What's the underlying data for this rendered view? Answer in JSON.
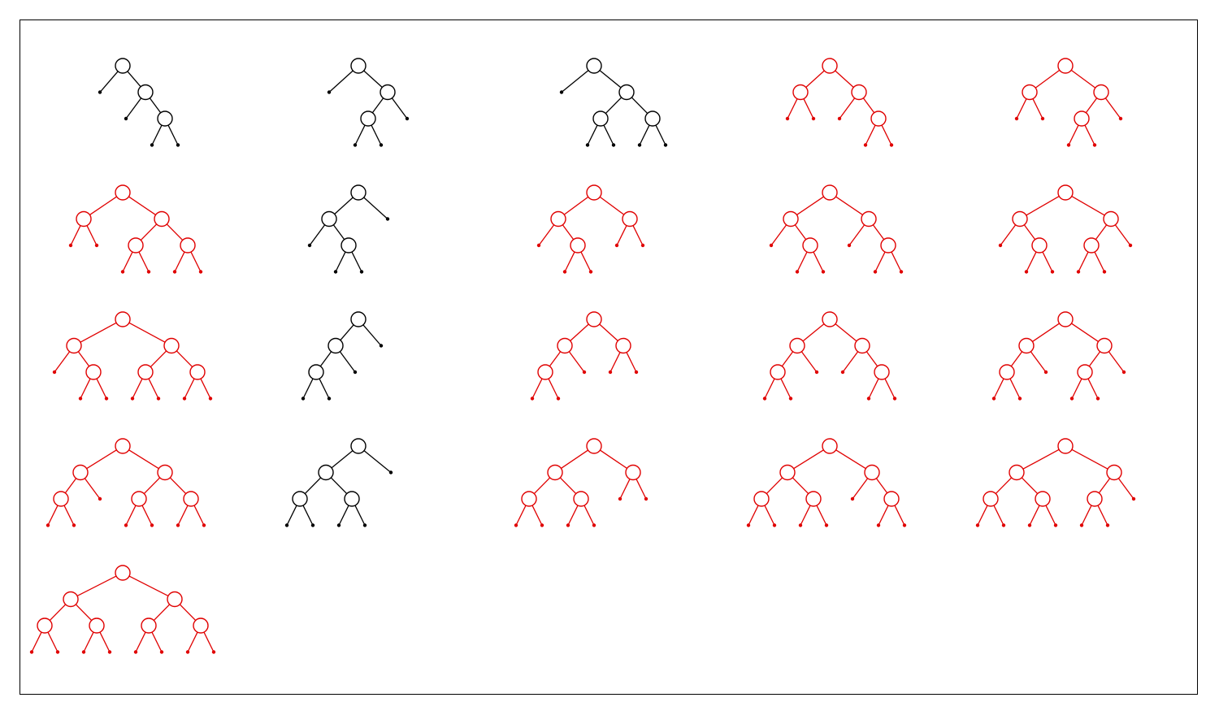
{
  "colors": {
    "black": "#000000",
    "red": "#e00000"
  },
  "legend_note": "",
  "trees": [
    {
      "color": "black",
      "shape": [
        "",
        [
          "",
          [
            "",
            ""
          ]
        ]
      ]
    },
    {
      "color": "black",
      "shape": [
        "",
        [
          [
            "",
            ""
          ],
          ""
        ]
      ]
    },
    {
      "color": "black",
      "shape": [
        "",
        [
          [
            "",
            ""
          ],
          [
            "",
            ""
          ]
        ]
      ]
    },
    {
      "color": "red",
      "shape": [
        [
          "",
          ""
        ],
        [
          "",
          [
            "",
            ""
          ]
        ]
      ]
    },
    {
      "color": "red",
      "shape": [
        [
          "",
          ""
        ],
        [
          [
            "",
            ""
          ],
          ""
        ]
      ]
    },
    {
      "color": "red",
      "shape": [
        [
          "",
          ""
        ],
        [
          [
            "",
            ""
          ],
          [
            "",
            ""
          ]
        ]
      ]
    },
    {
      "color": "black",
      "shape": [
        [
          "",
          [
            "",
            ""
          ]
        ],
        ""
      ]
    },
    {
      "color": "red",
      "shape": [
        [
          "",
          [
            "",
            ""
          ]
        ],
        [
          "",
          ""
        ]
      ]
    },
    {
      "color": "red",
      "shape": [
        [
          "",
          [
            "",
            ""
          ]
        ],
        [
          "",
          [
            "",
            ""
          ]
        ]
      ]
    },
    {
      "color": "red",
      "shape": [
        [
          "",
          [
            "",
            ""
          ]
        ],
        [
          [
            "",
            ""
          ],
          ""
        ]
      ]
    },
    {
      "color": "red",
      "shape": [
        [
          "",
          [
            "",
            ""
          ]
        ],
        [
          [
            "",
            ""
          ],
          [
            "",
            ""
          ]
        ]
      ]
    },
    {
      "color": "black",
      "shape": [
        [
          [
            "",
            ""
          ],
          ""
        ],
        ""
      ]
    },
    {
      "color": "red",
      "shape": [
        [
          [
            "",
            ""
          ],
          ""
        ],
        [
          "",
          ""
        ]
      ]
    },
    {
      "color": "red",
      "shape": [
        [
          [
            "",
            ""
          ],
          ""
        ],
        [
          "",
          [
            "",
            ""
          ]
        ]
      ]
    },
    {
      "color": "red",
      "shape": [
        [
          [
            "",
            ""
          ],
          ""
        ],
        [
          [
            "",
            ""
          ],
          ""
        ]
      ]
    },
    {
      "color": "red",
      "shape": [
        [
          [
            "",
            ""
          ],
          ""
        ],
        [
          [
            "",
            ""
          ],
          [
            "",
            ""
          ]
        ]
      ]
    },
    {
      "color": "black",
      "shape": [
        [
          [
            "",
            ""
          ],
          [
            "",
            ""
          ]
        ],
        ""
      ]
    },
    {
      "color": "red",
      "shape": [
        [
          [
            "",
            ""
          ],
          [
            "",
            ""
          ]
        ],
        [
          "",
          ""
        ]
      ]
    },
    {
      "color": "red",
      "shape": [
        [
          [
            "",
            ""
          ],
          [
            "",
            ""
          ]
        ],
        [
          "",
          [
            "",
            ""
          ]
        ]
      ]
    },
    {
      "color": "red",
      "shape": [
        [
          [
            "",
            ""
          ],
          [
            "",
            ""
          ]
        ],
        [
          [
            "",
            ""
          ],
          ""
        ]
      ]
    },
    {
      "color": "red",
      "shape": [
        [
          [
            "",
            ""
          ],
          [
            "",
            ""
          ]
        ],
        [
          [
            "",
            ""
          ],
          [
            "",
            ""
          ]
        ]
      ]
    }
  ]
}
